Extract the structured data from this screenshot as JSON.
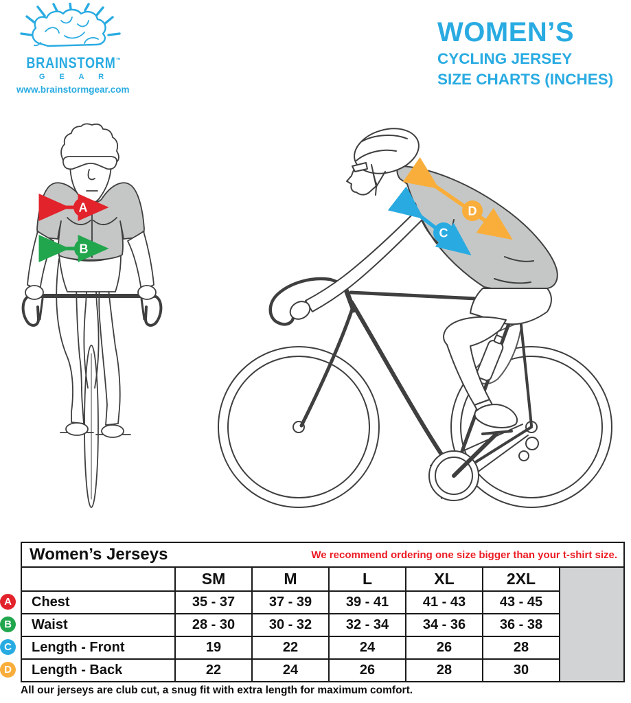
{
  "brand": {
    "name": "BRAINSTORM",
    "trademark": "TM",
    "subname": "G E A R",
    "website": "www.brainstormgear.com"
  },
  "title": {
    "line1": "WOMEN’S",
    "line2": "CYCLING JERSEY",
    "line3": "SIZE CHARTS (INCHES)"
  },
  "diagram": {
    "front_view": {
      "marker_a": "A",
      "marker_b": "B"
    },
    "side_view": {
      "marker_c": "C",
      "marker_d": "D"
    }
  },
  "colors": {
    "accent_cyan": "#29ABE2",
    "marker_a_red": "#E2232B",
    "marker_b_green": "#21A64D",
    "marker_c_blue": "#29ABE2",
    "marker_d_orange": "#F9AE3B",
    "note_red": "#EC1C24",
    "table_gray_cell": "#D1D3D4",
    "jersey_gray": "#C5C7C6"
  },
  "chart_data": {
    "type": "table",
    "title": "Women’s Jerseys",
    "note": "We recommend ordering one size bigger than your t-shirt size.",
    "columns": [
      "SM",
      "M",
      "L",
      "XL",
      "2XL"
    ],
    "rows": [
      {
        "marker": "A",
        "marker_color": "#E2232B",
        "label": "Chest",
        "values": [
          "35 - 37",
          "37 - 39",
          "39 - 41",
          "41 - 43",
          "43 - 45"
        ]
      },
      {
        "marker": "B",
        "marker_color": "#21A64D",
        "label": "Waist",
        "values": [
          "28 - 30",
          "30 - 32",
          "32 - 34",
          "34 - 36",
          "36 - 38"
        ]
      },
      {
        "marker": "C",
        "marker_color": "#29ABE2",
        "label": "Length - Front",
        "values": [
          "19",
          "22",
          "24",
          "26",
          "28"
        ]
      },
      {
        "marker": "D",
        "marker_color": "#F9AE3B",
        "label": "Length - Back",
        "values": [
          "22",
          "24",
          "26",
          "28",
          "30"
        ]
      }
    ]
  },
  "footer": {
    "note": "All our jerseys are club cut, a snug fit with extra length for maximum comfort."
  }
}
